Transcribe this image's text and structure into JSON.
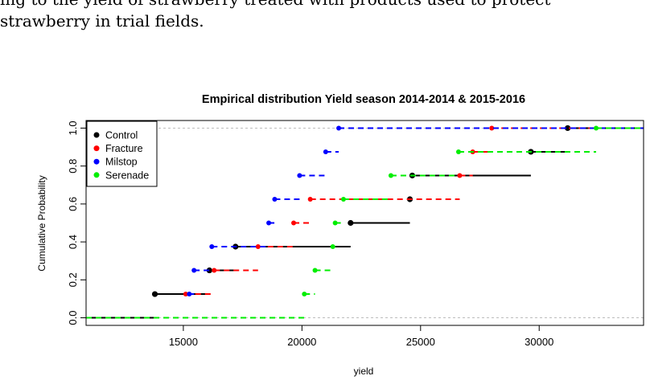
{
  "caption": {
    "line1": "ing to the yield of strawberry treated with products used to protect",
    "line2": "strawberry in trial fields."
  },
  "chart_data": {
    "type": "step-ecdf",
    "title": "Empirical distribution Yield season 2014-2014 & 2015-2016",
    "xlabel": "yield",
    "ylabel": "Cumulative Probability",
    "xlim": [
      10900,
      34400
    ],
    "ylim": [
      -0.04,
      1.04
    ],
    "x_ticks": [
      15000,
      20000,
      25000,
      30000
    ],
    "x_tick_labels": [
      "15000",
      "20000",
      "25000",
      "30000"
    ],
    "y_ticks": [
      0.0,
      0.2,
      0.4,
      0.6,
      0.8,
      1.0
    ],
    "y_tick_labels": [
      "0.0",
      "0.2",
      "0.4",
      "0.6",
      "0.8",
      "1.0"
    ],
    "reference_lines": [
      0,
      1
    ],
    "legend_position": "top-left",
    "series": [
      {
        "name": "Control",
        "color": "#000000",
        "line_style": "solid",
        "steps": [
          {
            "y": 0.125,
            "x_start": 13800,
            "x_end": 16100
          },
          {
            "y": 0.25,
            "x_start": 16100,
            "x_end": 17200
          },
          {
            "y": 0.375,
            "x_start": 17200,
            "x_end": 22050
          },
          {
            "y": 0.5,
            "x_start": 22050,
            "x_end": 24550
          },
          {
            "y": 0.625,
            "x_start": 24550,
            "x_end": 24650
          },
          {
            "y": 0.75,
            "x_start": 24650,
            "x_end": 29650
          },
          {
            "y": 0.875,
            "x_start": 29650,
            "x_end": 31200
          },
          {
            "y": 1.0,
            "x_start": 31200,
            "x_end": 34400
          }
        ]
      },
      {
        "name": "Fracture",
        "color": "#ff0000",
        "line_style": "dashed",
        "steps": [
          {
            "y": 0.125,
            "x_start": 15100,
            "x_end": 16300
          },
          {
            "y": 0.25,
            "x_start": 16300,
            "x_end": 18150
          },
          {
            "y": 0.375,
            "x_start": 18150,
            "x_end": 19650
          },
          {
            "y": 0.5,
            "x_start": 19650,
            "x_end": 20350
          },
          {
            "y": 0.625,
            "x_start": 20350,
            "x_end": 26650
          },
          {
            "y": 0.75,
            "x_start": 26650,
            "x_end": 27200
          },
          {
            "y": 0.875,
            "x_start": 27200,
            "x_end": 28000
          },
          {
            "y": 1.0,
            "x_start": 28000,
            "x_end": 34400
          }
        ]
      },
      {
        "name": "Milstop",
        "color": "#0000ff",
        "line_style": "dashed",
        "steps": [
          {
            "y": 0.125,
            "x_start": 15250,
            "x_end": 15450
          },
          {
            "y": 0.25,
            "x_start": 15450,
            "x_end": 16200
          },
          {
            "y": 0.375,
            "x_start": 16200,
            "x_end": 18600
          },
          {
            "y": 0.5,
            "x_start": 18600,
            "x_end": 18850
          },
          {
            "y": 0.625,
            "x_start": 18850,
            "x_end": 19900
          },
          {
            "y": 0.75,
            "x_start": 19900,
            "x_end": 21000
          },
          {
            "y": 0.875,
            "x_start": 21000,
            "x_end": 21550
          },
          {
            "y": 1.0,
            "x_start": 21550,
            "x_end": 34400
          }
        ]
      },
      {
        "name": "Serenade",
        "color": "#00ee00",
        "line_style": "dashed",
        "steps": [
          {
            "y": 0.125,
            "x_start": 20100,
            "x_end": 20550
          },
          {
            "y": 0.25,
            "x_start": 20550,
            "x_end": 21300
          },
          {
            "y": 0.375,
            "x_start": 21300,
            "x_end": 21400
          },
          {
            "y": 0.5,
            "x_start": 21400,
            "x_end": 21750
          },
          {
            "y": 0.625,
            "x_start": 21750,
            "x_end": 23750
          },
          {
            "y": 0.75,
            "x_start": 23750,
            "x_end": 26600
          },
          {
            "y": 0.875,
            "x_start": 26600,
            "x_end": 32400
          },
          {
            "y": 1.0,
            "x_start": 32400,
            "x_end": 34400
          }
        ]
      }
    ]
  }
}
